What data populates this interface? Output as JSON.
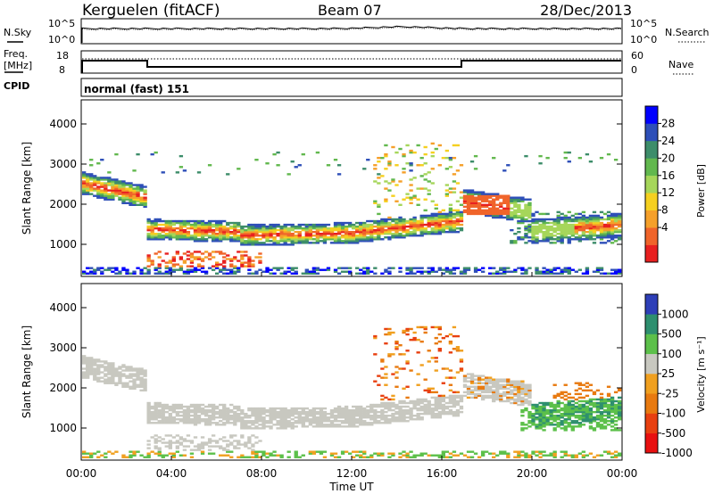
{
  "header": {
    "radar": "Kerguelen (fitACF)",
    "beam": "Beam 07",
    "date": "28/Dec/2013"
  },
  "noise_panel": {
    "left_label": "N.Sky",
    "right_label": "N.Search",
    "left_ticks": [
      "10^5",
      "10^0"
    ],
    "right_ticks": [
      "10^5",
      "10^0"
    ]
  },
  "freq_panel": {
    "left_label_line1": "Freq.",
    "left_label_line2": "[MHz]",
    "right_label": "Nave",
    "left_ticks": [
      "18",
      "8"
    ],
    "right_ticks": [
      "60",
      "0"
    ]
  },
  "cpid_panel": {
    "label": "CPID",
    "value": "normal (fast) 151"
  },
  "chart_data": [
    {
      "type": "heatmap",
      "name": "power",
      "ylabel": "Slant Range [km]",
      "yticks": [
        "1000",
        "2000",
        "3000",
        "4000"
      ],
      "ylim": [
        200,
        4600
      ],
      "xlim_hours": [
        0,
        24
      ],
      "colorbar_label": "Power [dB]",
      "colorbar_ticks": [
        "4",
        "8",
        "12",
        "16",
        "20",
        "24",
        "28"
      ],
      "colors": [
        "#0000ff",
        "#2e4fb8",
        "#3d8d6a",
        "#62b84e",
        "#a6d65a",
        "#f5d020",
        "#f5a02a",
        "#f0642a",
        "#e82020"
      ]
    },
    {
      "type": "heatmap",
      "name": "velocity",
      "ylabel": "Slant Range [km]",
      "yticks": [
        "1000",
        "2000",
        "3000",
        "4000"
      ],
      "ylim": [
        200,
        4600
      ],
      "xlim_hours": [
        0,
        24
      ],
      "colorbar_label": "Velocity [m s⁻¹]",
      "colorbar_ticks": [
        "1000",
        "500",
        "100",
        "25",
        "-25",
        "-100",
        "-500",
        "-1000"
      ],
      "colors": [
        "#2e3fb8",
        "#2e8f6f",
        "#5cc04a",
        "#c8c8c0",
        "#f0a020",
        "#e87a10",
        "#e84010",
        "#e81010"
      ]
    }
  ],
  "x_axis": {
    "ticks": [
      "00:00",
      "04:00",
      "08:00",
      "12:00",
      "16:00",
      "20:00",
      "00:00"
    ],
    "label": "Time UT"
  }
}
